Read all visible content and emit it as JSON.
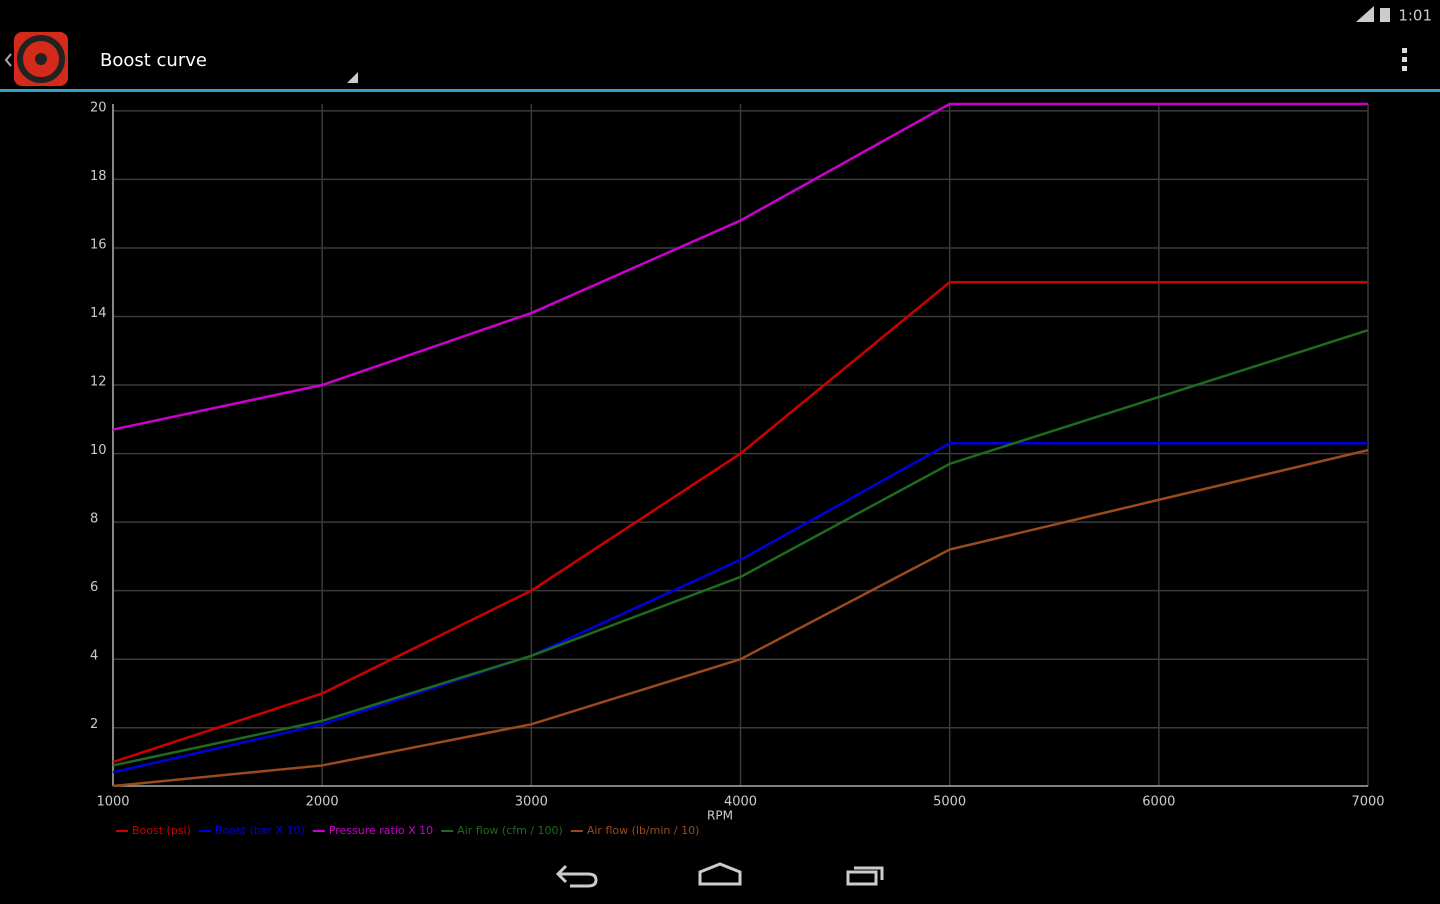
{
  "status_bar": {
    "time": "1:01"
  },
  "app_bar": {
    "title": "Boost curve"
  },
  "chart_data": {
    "type": "line",
    "xlabel": "RPM",
    "x": [
      1000,
      2000,
      3000,
      4000,
      5000,
      7000
    ],
    "xlim": [
      1000,
      7000
    ],
    "xticks": [
      1000,
      2000,
      3000,
      4000,
      5000,
      6000,
      7000
    ],
    "ylim": [
      0.3,
      20.2
    ],
    "yticks": [
      2,
      4,
      6,
      8,
      10,
      12,
      14,
      16,
      18,
      20
    ],
    "grid": true,
    "series": [
      {
        "name": "Boost (psi)",
        "color": "#cc0000",
        "values": [
          1,
          3,
          6,
          10,
          15,
          15
        ]
      },
      {
        "name": "Boost (bar X 10)",
        "color": "#0000dd",
        "values": [
          0.7,
          2.1,
          4.1,
          6.9,
          10.3,
          10.3
        ]
      },
      {
        "name": "Pressure ratio X 10",
        "color": "#cc00cc",
        "values": [
          10.7,
          12.0,
          14.1,
          16.8,
          20.2,
          20.2
        ]
      },
      {
        "name": "Air flow (cfm / 100)",
        "color": "#1d6b1d",
        "values": [
          0.9,
          2.2,
          4.1,
          6.4,
          9.7,
          13.6
        ]
      },
      {
        "name": "Air flow (lb/min / 10)",
        "color": "#9a4a1c",
        "values": [
          0.3,
          0.9,
          2.1,
          4.0,
          7.2,
          10.1
        ]
      }
    ]
  }
}
